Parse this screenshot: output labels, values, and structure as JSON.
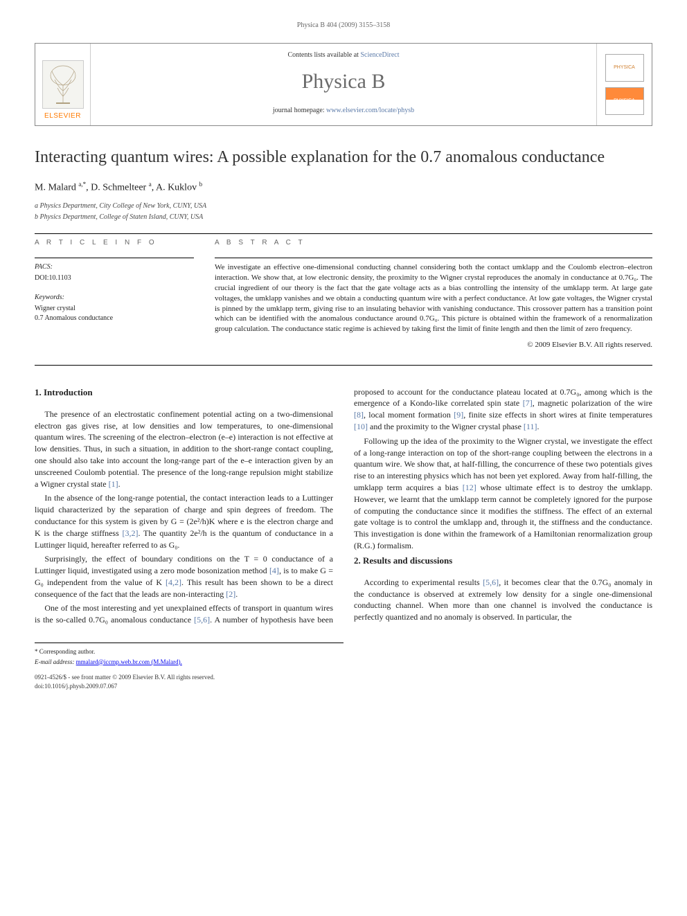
{
  "running_head": "Physica B 404 (2009) 3155–3158",
  "masthead": {
    "elsevier": "ELSEVIER",
    "contents_prefix": "Contents lists available at ",
    "contents_link": "ScienceDirect",
    "journal": "Physica B",
    "homepage_prefix": "journal homepage: ",
    "homepage_url": "www.elsevier.com/locate/physb",
    "thumb_label": "PHYSICA"
  },
  "title": "Interacting quantum wires: A possible explanation for the 0.7 anomalous conductance",
  "authors_html": "M. Malard <sup>a,*</sup>, D. Schmelteer <sup>a</sup>, A. Kuklov <sup>b</sup>",
  "affiliations": [
    "a Physics Department, City College of New York, CUNY, USA",
    "b Physics Department, College of Staten Island, CUNY, USA"
  ],
  "info": {
    "heading": "a r t i c l e  i n f o",
    "pacs_label": "PACS:",
    "pacs_value": "DOI:10.1103",
    "keywords_label": "Keywords:",
    "keywords": [
      "Wigner crystal",
      "0.7 Anomalous conductance"
    ]
  },
  "abstract": {
    "heading": "a b s t r a c t",
    "text": "We investigate an effective one-dimensional conducting channel considering both the contact umklapp and the Coulomb electron–electron interaction. We show that, at low electronic density, the proximity to the Wigner crystal reproduces the anomaly in conductance at 0.7G₀. The crucial ingredient of our theory is the fact that the gate voltage acts as a bias controlling the intensity of the umklapp term. At large gate voltages, the umklapp vanishes and we obtain a conducting quantum wire with a perfect conductance. At low gate voltages, the Wigner crystal is pinned by the umklapp term, giving rise to an insulating behavior with vanishing conductance. This crossover pattern has a transition point which can be identified with the anomalous conductance around 0.7G₀. This picture is obtained within the framework of a renormalization group calculation. The conductance static regime is achieved by taking first the limit of finite length and then the limit of zero frequency.",
    "copyright": "© 2009 Elsevier B.V. All rights reserved."
  },
  "sections": {
    "s1_title": "1. Introduction",
    "s1_p1": "The presence of an electrostatic confinement potential acting on a two-dimensional electron gas gives rise, at low densities and low temperatures, to one-dimensional quantum wires. The screening of the electron–electron (e–e) interaction is not effective at low densities. Thus, in such a situation, in addition to the short-range contact coupling, one should also take into account the long-range part of the e–e interaction given by an unscreened Coulomb potential. The presence of the long-range repulsion might stabilize a Wigner crystal state [1].",
    "s1_p2": "In the absence of the long-range potential, the contact interaction leads to a Luttinger liquid characterized by the separation of charge and spin degrees of freedom. The conductance for this system is given by G = (2e²/h)K where e is the electron charge and K is the charge stiffness [3,2]. The quantity 2e²/h is the quantum of conductance in a Luttinger liquid, hereafter referred to as G₀.",
    "s1_p3": "Surprisingly, the effect of boundary conditions on the T = 0 conductance of a Luttinger liquid, investigated using a zero mode bosonization method [4], is to make G = G₀ independent from the value of K [4,2]. This result has been shown to be a direct consequence of the fact that the leads are non-interacting [2].",
    "s1_p4": "One of the most interesting and yet unexplained effects of transport in quantum wires is the so-called 0.7G₀ anomalous conductance [5,6]. A number of hypothesis have been proposed to account for the conductance plateau located at 0.7G₀, among which is the emergence of a Kondo-like correlated spin state [7], magnetic polarization of the wire [8], local moment formation [9], finite size effects in short wires at finite temperatures [10] and the proximity to the Wigner crystal phase [11].",
    "s1_p5": "Following up the idea of the proximity to the Wigner crystal, we investigate the effect of a long-range interaction on top of the short-range coupling between the electrons in a quantum wire. We show that, at half-filling, the concurrence of these two potentials gives rise to an interesting physics which has not been yet explored. Away from half-filling, the umklapp term acquires a bias [12] whose ultimate effect is to destroy the umklapp. However, we learnt that the umklapp term cannot be completely ignored for the purpose of computing the conductance since it modifies the stiffness. The effect of an external gate voltage is to control the umklapp and, through it, the stiffness and the conductance. This investigation is done within the framework of a Hamiltonian renormalization group (R.G.) formalism.",
    "s2_title": "2. Results and discussions",
    "s2_p1": "According to experimental results [5,6], it becomes clear that the 0.7G₀ anomaly in the conductance is observed at extremely low density for a single one-dimensional conducting channel. When more than one channel is involved the conductance is perfectly quantized and no anomaly is observed. In particular, the"
  },
  "footnotes": {
    "corr": "* Corresponding author.",
    "email_label": "E-mail address:",
    "email": "mmalard@iccmp.web.br.com (M.Malard).",
    "issn": "0921-4526/$ - see front matter © 2009 Elsevier B.V. All rights reserved.",
    "doi": "doi:10.1016/j.physb.2009.07.067"
  },
  "colors": {
    "link": "#5b7aa8",
    "elsevier_orange": "#ff7a00",
    "journal_grey": "#6a6a6a"
  }
}
